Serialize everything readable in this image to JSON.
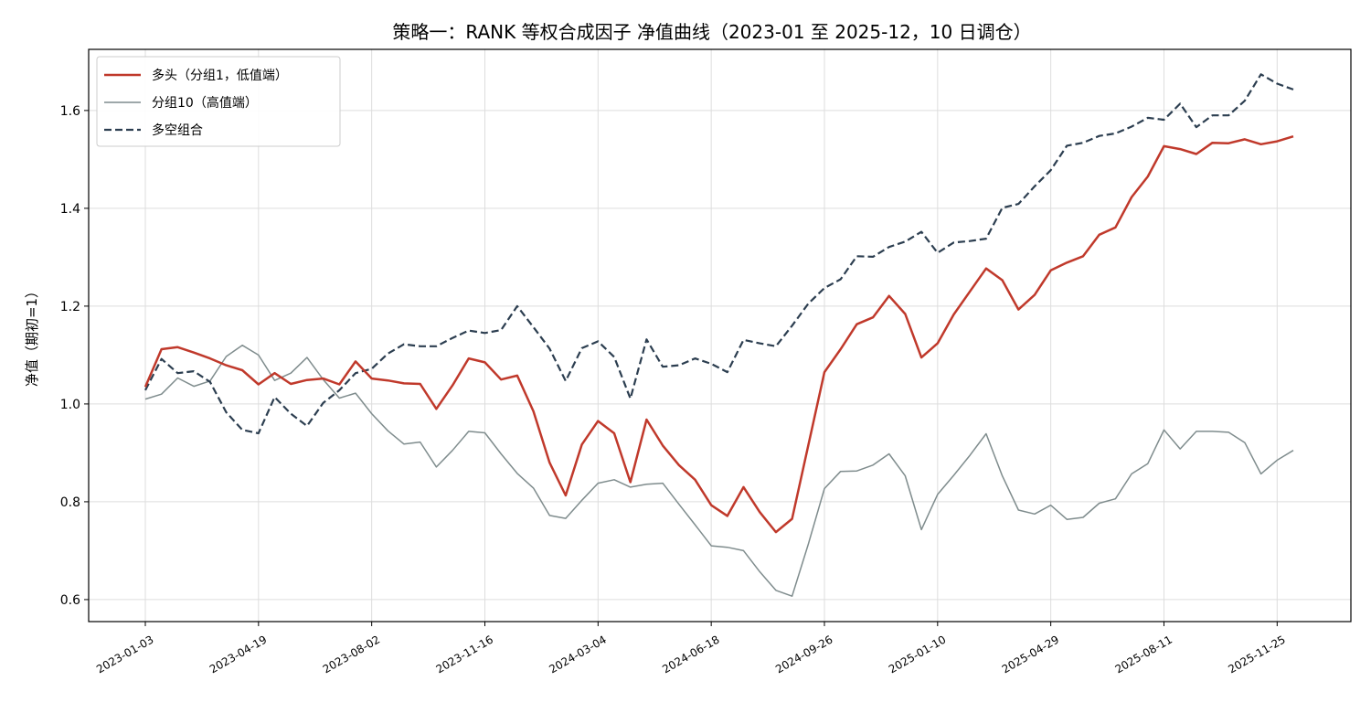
{
  "chart_data": {
    "type": "line",
    "title": "策略一：RANK 等权合成因子 净值曲线（2023-01 至 2025-12，10 日调仓）",
    "xlabel": "",
    "ylabel": "净值（期初=1）",
    "ylim": [
      0.555,
      1.725
    ],
    "yticks": [
      0.6,
      0.8,
      1.0,
      1.2,
      1.4,
      1.6
    ],
    "ytick_labels": [
      "0.6",
      "0.8",
      "1.0",
      "1.2",
      "1.4",
      "1.6"
    ],
    "xtick_indices": [
      0,
      7,
      14,
      21,
      28,
      35,
      42,
      49,
      56,
      63,
      70
    ],
    "xtick_labels": [
      "2023-01-03",
      "2023-04-19",
      "2023-08-02",
      "2023-11-16",
      "2024-03-04",
      "2024-06-18",
      "2024-09-26",
      "2025-01-10",
      "2025-04-29",
      "2025-08-11",
      "2025-11-25"
    ],
    "grid": true,
    "legend_position": "top-left",
    "series": [
      {
        "name": "多头（分组1，低值端）",
        "color": "#c0392b",
        "style": "solid",
        "width": 2.5,
        "values": [
          1.035,
          1.112,
          1.116,
          1.105,
          1.093,
          1.079,
          1.069,
          1.04,
          1.063,
          1.041,
          1.049,
          1.052,
          1.04,
          1.087,
          1.052,
          1.048,
          1.042,
          1.041,
          0.99,
          1.038,
          1.093,
          1.085,
          1.05,
          1.058,
          0.985,
          0.88,
          0.813,
          0.917,
          0.965,
          0.94,
          0.84,
          0.968,
          0.915,
          0.875,
          0.845,
          0.793,
          0.771,
          0.83,
          0.779,
          0.738,
          0.765,
          0.915,
          1.065,
          1.112,
          1.163,
          1.177,
          1.221,
          1.184,
          1.095,
          1.124,
          1.183,
          1.23,
          1.277,
          1.253,
          1.193,
          1.223,
          1.273,
          1.289,
          1.302,
          1.346,
          1.361,
          1.423,
          1.465,
          1.527,
          1.521,
          1.511,
          1.534,
          1.533,
          1.541,
          1.531,
          1.537,
          1.547
        ]
      },
      {
        "name": "分组10（高值端）",
        "color": "#7f8c8d",
        "style": "solid",
        "width": 1.5,
        "values": [
          1.01,
          1.02,
          1.053,
          1.036,
          1.047,
          1.097,
          1.12,
          1.1,
          1.048,
          1.063,
          1.095,
          1.05,
          1.012,
          1.022,
          0.98,
          0.945,
          0.918,
          0.922,
          0.871,
          0.905,
          0.944,
          0.941,
          0.898,
          0.858,
          0.828,
          0.772,
          0.766,
          0.803,
          0.838,
          0.845,
          0.83,
          0.836,
          0.838,
          0.795,
          0.753,
          0.71,
          0.707,
          0.7,
          0.657,
          0.619,
          0.607,
          0.713,
          0.827,
          0.862,
          0.863,
          0.875,
          0.898,
          0.853,
          0.743,
          0.815,
          0.854,
          0.895,
          0.939,
          0.853,
          0.783,
          0.775,
          0.793,
          0.764,
          0.768,
          0.797,
          0.806,
          0.857,
          0.878,
          0.947,
          0.908,
          0.944,
          0.944,
          0.942,
          0.921,
          0.857,
          0.885,
          0.905
        ]
      },
      {
        "name": "多空组合",
        "color": "#2c3e50",
        "style": "dashed",
        "width": 2.2,
        "values": [
          1.028,
          1.092,
          1.063,
          1.067,
          1.045,
          0.983,
          0.947,
          0.94,
          1.014,
          0.98,
          0.955,
          1.002,
          1.028,
          1.063,
          1.072,
          1.103,
          1.122,
          1.118,
          1.118,
          1.135,
          1.15,
          1.145,
          1.151,
          1.2,
          1.157,
          1.113,
          1.047,
          1.114,
          1.128,
          1.096,
          1.011,
          1.132,
          1.076,
          1.079,
          1.093,
          1.082,
          1.065,
          1.131,
          1.124,
          1.118,
          1.16,
          1.205,
          1.237,
          1.255,
          1.302,
          1.301,
          1.321,
          1.332,
          1.352,
          1.309,
          1.33,
          1.333,
          1.338,
          1.401,
          1.409,
          1.445,
          1.478,
          1.528,
          1.534,
          1.548,
          1.553,
          1.567,
          1.585,
          1.581,
          1.614,
          1.566,
          1.59,
          1.59,
          1.62,
          1.674,
          1.655,
          1.643
        ]
      }
    ]
  }
}
